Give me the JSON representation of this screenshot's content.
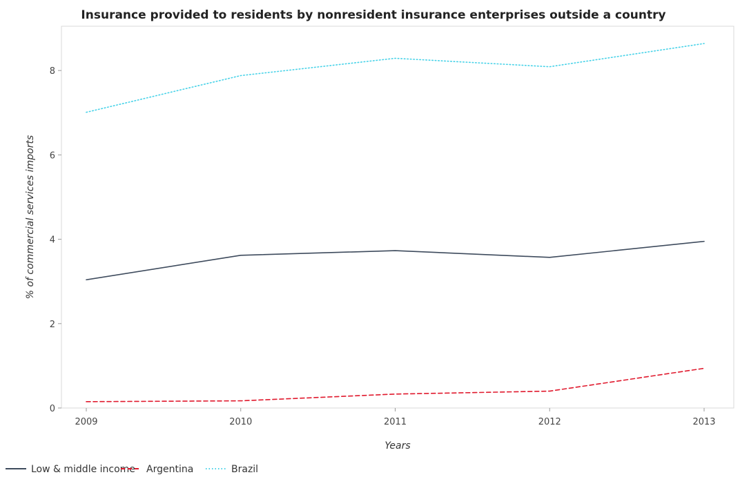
{
  "chart_data": {
    "type": "line",
    "title": "Insurance provided to residents by nonresident insurance enterprises outside a country",
    "xlabel": "Years",
    "ylabel": "% of commercial services imports",
    "categories": [
      "2009",
      "2010",
      "2011",
      "2012",
      "2013"
    ],
    "y_ticks": [
      "0",
      "2",
      "4",
      "6",
      "8"
    ],
    "ylim": [
      0,
      9.05
    ],
    "grid": false,
    "legend_position": "bottom-left",
    "series": [
      {
        "name": "Low & middle income",
        "color": "#3d4a5c",
        "dash": "solid",
        "values": [
          3.04,
          3.62,
          3.73,
          3.57,
          3.95
        ]
      },
      {
        "name": "Argentina",
        "color": "#e0182c",
        "dash": "dashed",
        "values": [
          0.15,
          0.17,
          0.33,
          0.4,
          0.94
        ]
      },
      {
        "name": "Brazil",
        "color": "#46d2e8",
        "dash": "dotted",
        "values": [
          7.01,
          7.88,
          8.29,
          8.09,
          8.64
        ]
      }
    ]
  }
}
